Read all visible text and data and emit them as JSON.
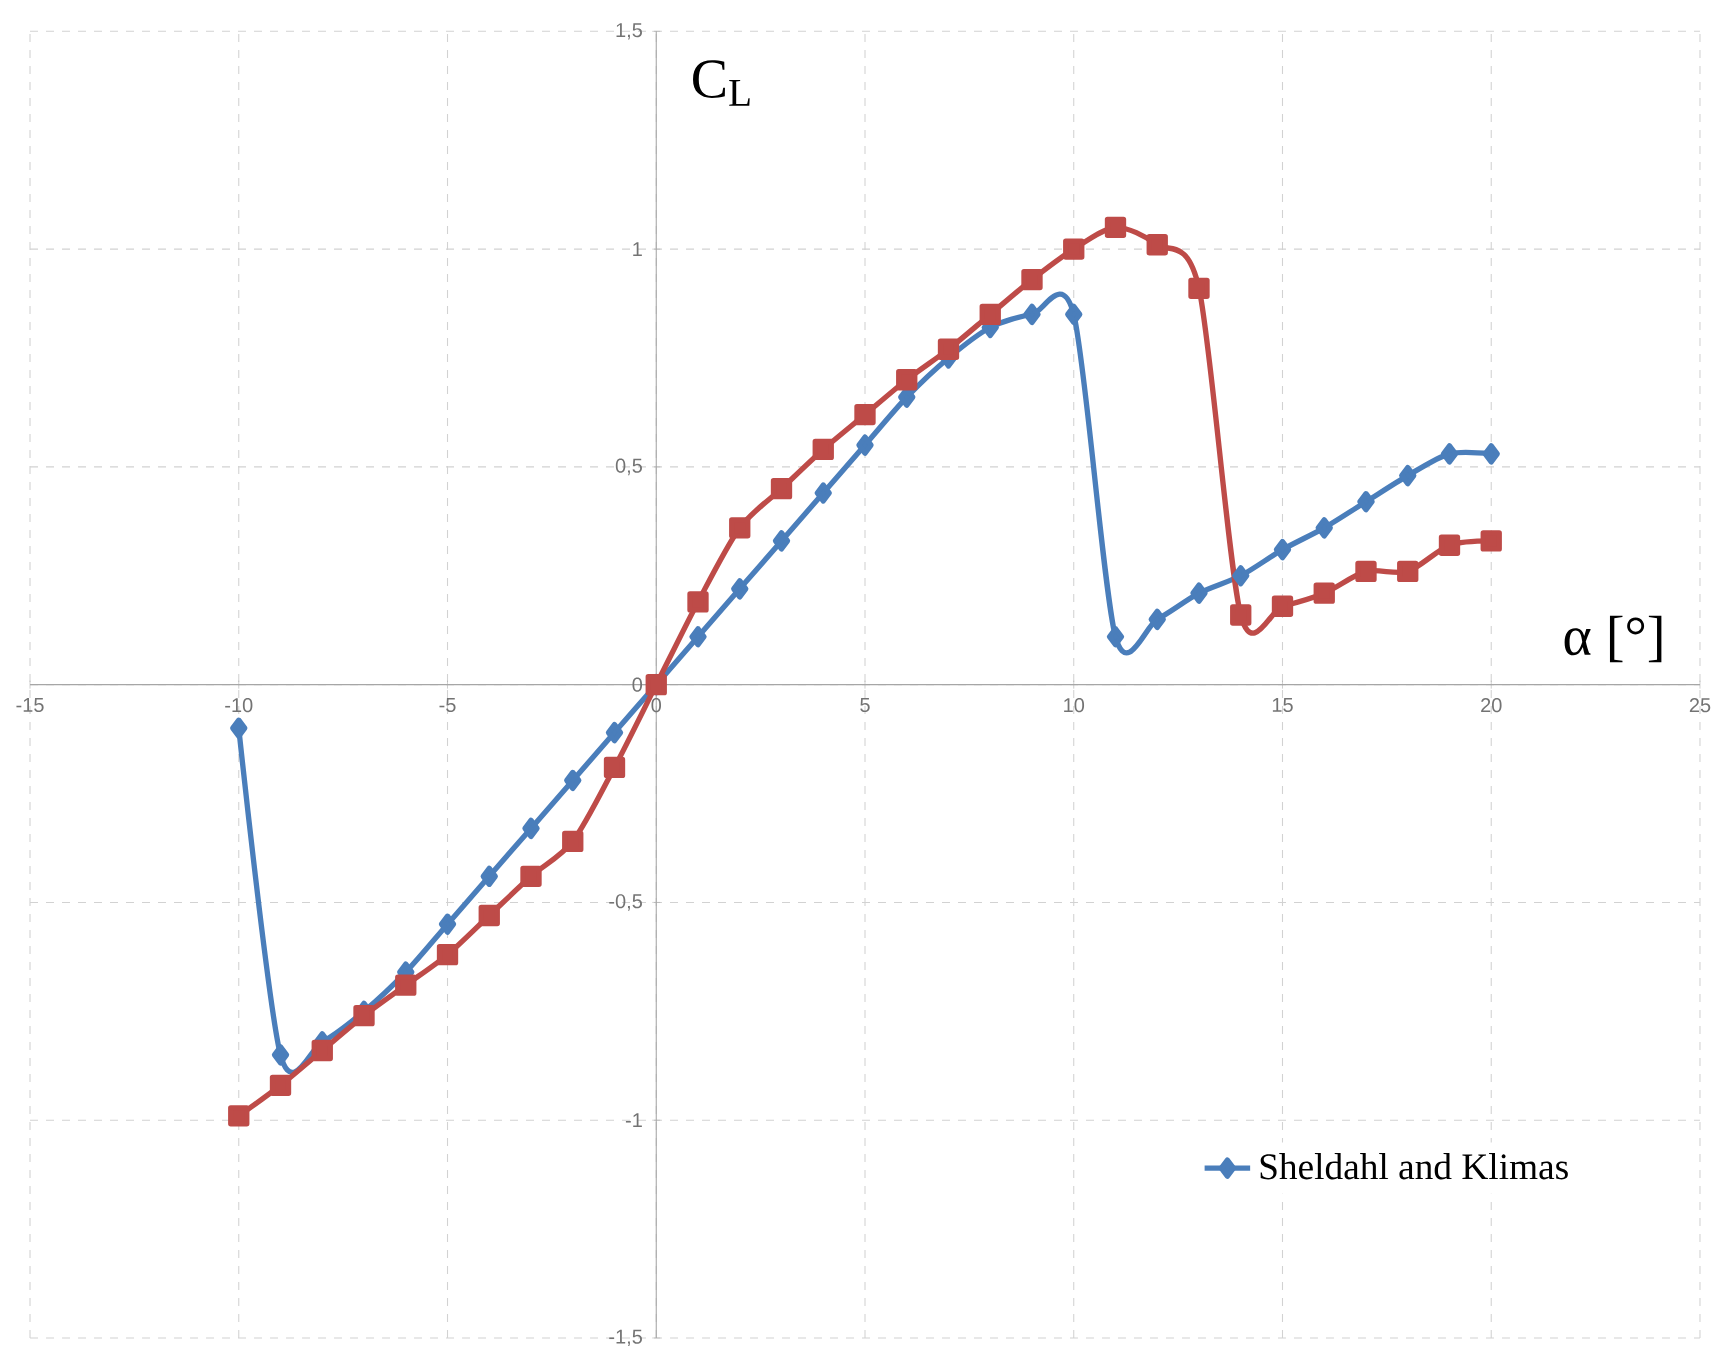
{
  "chart_data": {
    "type": "line",
    "xlabel": "α [°]",
    "ylabel": "C$_{L}$",
    "xlim": [
      -15,
      25
    ],
    "ylim": [
      -1.5,
      1.5
    ],
    "xticks": [
      -15,
      -10,
      -5,
      0,
      5,
      10,
      15,
      20,
      25
    ],
    "yticks": [
      {
        "value": -1.5,
        "label": "-1,5"
      },
      -1,
      {
        "value": -0.5,
        "label": "-0,5"
      },
      0,
      {
        "value": 0.5,
        "label": "0,5"
      },
      1,
      {
        "value": 1.5,
        "label": "1,5"
      }
    ],
    "grid": true,
    "legend": "bottom right",
    "line_style": "solid",
    "series": [
      {
        "name": "Sheldahl and Klimas",
        "color": "#4a7ebb",
        "marker": "diamond",
        "x": [
          -10,
          -9,
          -8,
          -7,
          -6,
          -5,
          -4,
          -3,
          -2,
          -1,
          0,
          1,
          2,
          3,
          4,
          5,
          6,
          7,
          8,
          9,
          10,
          11,
          12,
          13,
          14,
          15,
          16,
          17,
          18,
          19,
          20
        ],
        "values": [
          -0.1,
          -0.85,
          -0.82,
          -0.75,
          -0.66,
          -0.55,
          -0.44,
          -0.33,
          -0.22,
          -0.11,
          0,
          0.11,
          0.22,
          0.33,
          0.44,
          0.55,
          0.66,
          0.75,
          0.82,
          0.85,
          0.85,
          0.11,
          0.15,
          0.21,
          0.25,
          0.31,
          0.36,
          0.42,
          0.48,
          0.53,
          0.53
        ]
      },
      {
        "color": "#be4b48",
        "marker": "square",
        "x": [
          -10,
          -9,
          -8,
          -7,
          -6,
          -5,
          -4,
          -3,
          -2,
          -1,
          0,
          1,
          2,
          3,
          4,
          5,
          6,
          7,
          8,
          9,
          10,
          11,
          12,
          13,
          14,
          15,
          16,
          17,
          18,
          19,
          20
        ],
        "values": [
          -0.99,
          -0.92,
          -0.84,
          -0.76,
          -0.69,
          -0.62,
          -0.53,
          -0.44,
          -0.36,
          -0.19,
          0,
          0.19,
          0.36,
          0.45,
          0.54,
          0.62,
          0.7,
          0.77,
          0.85,
          0.93,
          1.0,
          1.05,
          1.01,
          0.91,
          0.16,
          0.18,
          0.21,
          0.26,
          0.26,
          0.32,
          0.33
        ]
      }
    ]
  }
}
